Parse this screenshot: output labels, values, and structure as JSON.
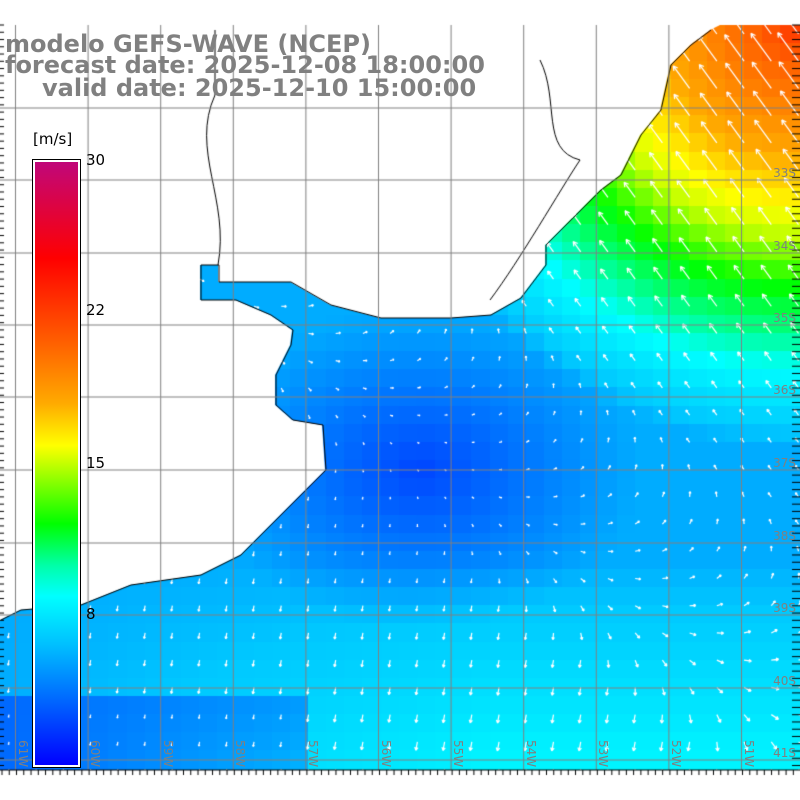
{
  "title": {
    "model": "modelo GEFS-WAVE (NCEP)",
    "forecast": "forecast date: 2025-12-08 18:00:00",
    "valid": "valid date: 2025-12-10 15:00:00"
  },
  "colorbar": {
    "unit": "[m/s]",
    "ticks": [
      "30",
      "22",
      "15",
      "8"
    ],
    "colors": [
      "#c0077a",
      "#ff0000",
      "#ff6000",
      "#ffaa00",
      "#ffff00",
      "#00ff00",
      "#00ffaa",
      "#00ffff",
      "#00c0ff",
      "#0000ff"
    ]
  },
  "lat_labels": [
    "33S",
    "34S",
    "35S",
    "36S",
    "37S",
    "38S",
    "39S",
    "40S",
    "41S"
  ],
  "lon_labels": [
    "61W",
    "60W",
    "59W",
    "58W",
    "57W",
    "56W",
    "55W",
    "54W",
    "53W",
    "52W",
    "51W"
  ],
  "colors": {
    "land": "#ffffff",
    "grid": "#808080",
    "coast": "#000000",
    "arrow": "#ffffff",
    "label": "#808080"
  }
}
